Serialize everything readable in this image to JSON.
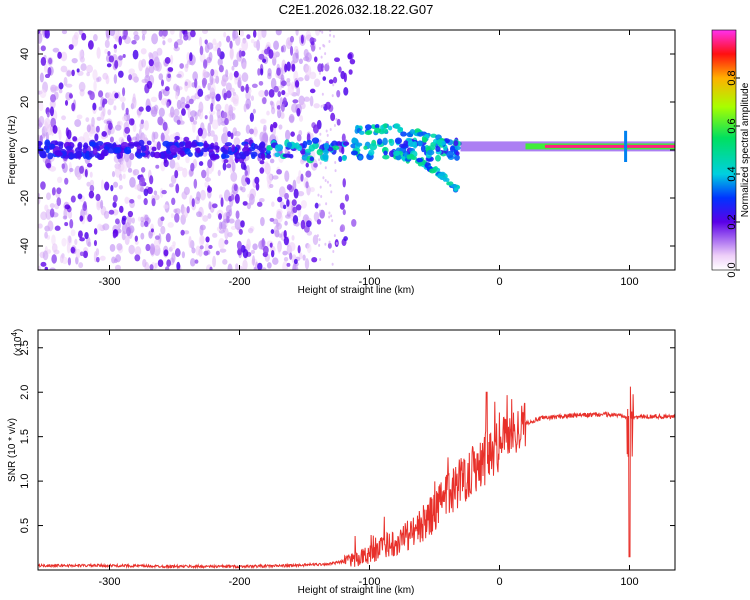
{
  "title": "C2E1.2026.032.18.22.G07",
  "chart_data": [
    {
      "type": "heatmap",
      "name": "spectrogram",
      "xlabel": "Height of straight line (km)",
      "ylabel": "Frequency (Hz)",
      "xlim": [
        -355,
        135
      ],
      "ylim": [
        -50,
        50
      ],
      "xticks": [
        -300,
        -200,
        -100,
        0,
        100
      ],
      "xtick_labels": [
        "-300",
        "-200",
        "-100",
        "0",
        "100"
      ],
      "yticks": [
        -40,
        -20,
        0,
        20,
        40
      ],
      "ytick_labels": [
        "-40",
        "-20",
        "0",
        "20",
        "40"
      ],
      "colorbar": {
        "label": "Normalized spectral amplitude",
        "range": [
          0,
          1
        ],
        "ticks": [
          0.0,
          0.2,
          0.4,
          0.6,
          0.8
        ],
        "tick_labels": [
          "0.0",
          "0.2",
          "0.4",
          "0.6",
          "0.8"
        ]
      },
      "features": {
        "carrier_line": {
          "x_from": -30,
          "x_to": 135,
          "frequency_hz": 1.5,
          "amplitude": 0.95
        },
        "noise_cloud": {
          "x_from": -355,
          "x_to": -140,
          "frequency_hz": [
            -50,
            50
          ],
          "amplitude": 0.2
        },
        "band_center": {
          "x_from": -355,
          "x_to": -30,
          "frequency_hz": 0,
          "amplitude": 0.4
        },
        "diverging_branch": [
          [
            -80,
            -2
          ],
          [
            -60,
            -5
          ],
          [
            -45,
            -10
          ],
          [
            -32,
            -17
          ]
        ],
        "upper_branch": [
          [
            -110,
            8
          ],
          [
            -80,
            9
          ],
          [
            -60,
            6
          ],
          [
            -40,
            3
          ]
        ],
        "spike_at_km": 97
      }
    },
    {
      "type": "line",
      "name": "snr",
      "xlabel": "Height of straight line (km)",
      "ylabel": "SNR (10 * v/v)",
      "multiplier_label": "(x10",
      "multiplier_exponent": "4",
      "multiplier_close": ")",
      "xlim": [
        -355,
        135
      ],
      "ylim": [
        0,
        2.7
      ],
      "xticks": [
        -300,
        -200,
        -100,
        0,
        100
      ],
      "xtick_labels": [
        "-300",
        "-200",
        "-100",
        "0",
        "100"
      ],
      "yticks": [
        0.5,
        1.0,
        1.5,
        2.0,
        2.5
      ],
      "ytick_labels": [
        "0.5",
        "1.0",
        "1.5",
        "2.0",
        "2.5"
      ],
      "color": "#e8302a",
      "series": [
        {
          "name": "SNR",
          "x": [
            -355,
            -300,
            -250,
            -200,
            -160,
            -130,
            -110,
            -100,
            -90,
            -80,
            -70,
            -60,
            -50,
            -40,
            -30,
            -20,
            -10,
            0,
            10,
            20,
            30,
            40,
            60,
            80,
            95,
            100,
            105,
            120,
            135
          ],
          "y": [
            0.05,
            0.05,
            0.04,
            0.04,
            0.05,
            0.07,
            0.12,
            0.18,
            0.25,
            0.32,
            0.4,
            0.5,
            0.65,
            0.85,
            1.0,
            1.15,
            1.3,
            1.45,
            1.55,
            1.65,
            1.7,
            1.72,
            1.74,
            1.75,
            1.74,
            1.72,
            1.72,
            1.73,
            1.72
          ]
        }
      ],
      "annotations": [
        {
          "x": -10,
          "y": 2.0,
          "text": ""
        },
        {
          "x": 100,
          "y": 2.7,
          "text": ""
        },
        {
          "x": 100,
          "y": 0.15,
          "text": ""
        }
      ]
    }
  ]
}
